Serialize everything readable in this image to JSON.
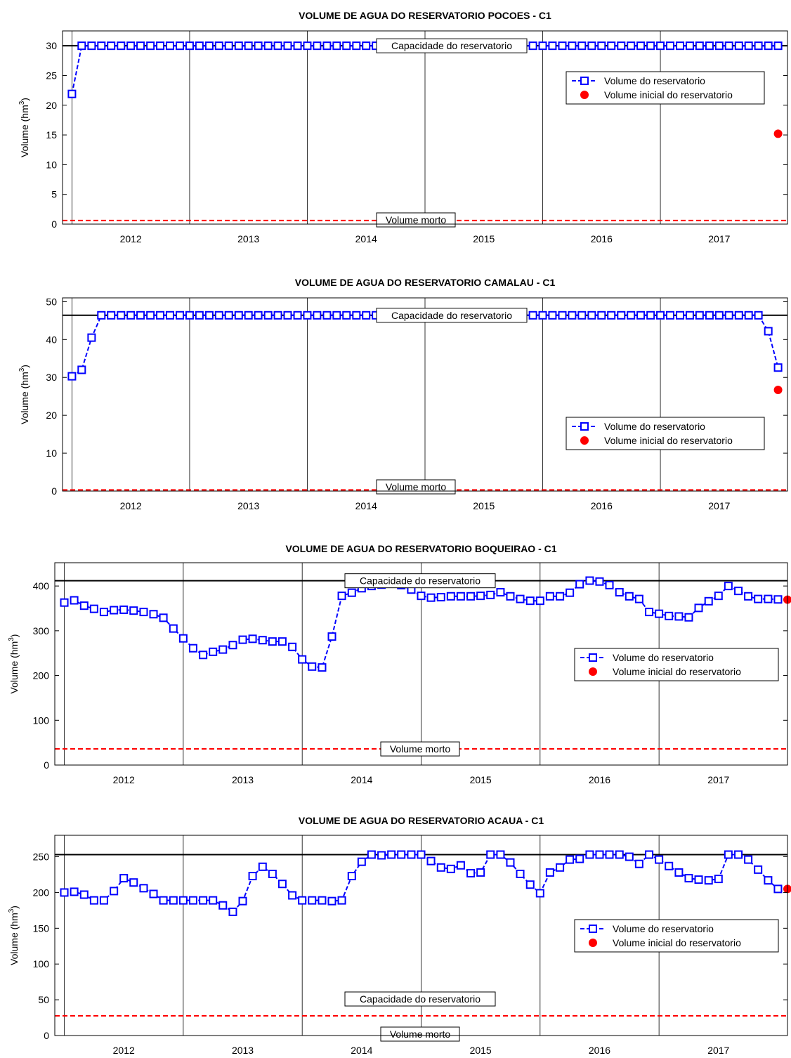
{
  "page": {
    "series_name": "Volume do reservatorio",
    "initial_name": "Volume inicial do reservatorio",
    "capacity_label": "Capacidade do reservatorio",
    "dead_label": "Volume morto",
    "ylabel_main": "Volume (hm",
    "ylabel_sup": "3",
    "ylabel_end": ")",
    "colors": {
      "series": "#0000ff",
      "capacity": "#000000",
      "dead": "#ff0000",
      "initial": "#ff0000",
      "grid": "#000000"
    }
  },
  "chart_data": [
    {
      "type": "line",
      "title": "VOLUME DE AGUA DO RESERVATORIO POCOES - C1",
      "xlim": [
        2011.42,
        2017.58
      ],
      "year_ticks": [
        "2012",
        "2013",
        "2014",
        "2015",
        "2016",
        "2017"
      ],
      "ylim": [
        0,
        32.5
      ],
      "yticks": [
        0,
        5,
        10,
        15,
        20,
        25,
        30
      ],
      "capacity": 30,
      "dead_volume": 0.6,
      "initial_volume": {
        "x": 2017.5,
        "y": 15.2
      },
      "legend": "upper-right",
      "x": [
        2011.5,
        2011.583,
        2011.667,
        2011.75,
        2011.833,
        2011.917,
        2012,
        2012.083,
        2012.167,
        2012.25,
        2012.333,
        2012.417,
        2012.5,
        2012.583,
        2012.667,
        2012.75,
        2012.833,
        2012.917,
        2013,
        2013.083,
        2013.167,
        2013.25,
        2013.333,
        2013.417,
        2013.5,
        2013.583,
        2013.667,
        2013.75,
        2013.833,
        2013.917,
        2014,
        2014.083,
        2014.167,
        2014.25,
        2014.333,
        2014.417,
        2014.5,
        2014.583,
        2014.667,
        2014.75,
        2014.833,
        2014.917,
        2015,
        2015.083,
        2015.167,
        2015.25,
        2015.333,
        2015.417,
        2015.5,
        2015.583,
        2015.667,
        2015.75,
        2015.833,
        2015.917,
        2016,
        2016.083,
        2016.167,
        2016.25,
        2016.333,
        2016.417,
        2016.5,
        2016.583,
        2016.667,
        2016.75,
        2016.833,
        2016.917,
        2017,
        2017.083,
        2017.167,
        2017.25,
        2017.333,
        2017.417,
        2017.5
      ],
      "y": [
        21.9,
        30,
        30,
        30,
        30,
        30,
        30,
        30,
        30,
        30,
        30,
        30,
        30,
        30,
        30,
        30,
        30,
        30,
        30,
        30,
        30,
        30,
        30,
        30,
        30,
        30,
        30,
        30,
        30,
        30,
        30,
        30,
        30,
        30,
        30,
        30,
        30,
        30,
        30,
        30,
        30,
        30,
        30,
        30,
        30,
        30,
        30,
        30,
        30,
        30,
        30,
        30,
        30,
        30,
        30,
        30,
        30,
        30,
        30,
        30,
        30,
        30,
        30,
        30,
        30,
        30,
        30,
        30,
        30,
        30,
        30,
        30,
        30
      ]
    },
    {
      "type": "line",
      "title": "VOLUME DE AGUA DO RESERVATORIO CAMALAU - C1",
      "xlim": [
        2011.42,
        2017.58
      ],
      "year_ticks": [
        "2012",
        "2013",
        "2014",
        "2015",
        "2016",
        "2017"
      ],
      "ylim": [
        0,
        51
      ],
      "yticks": [
        0,
        10,
        20,
        30,
        40,
        50
      ],
      "capacity": 46.4,
      "dead_volume": 0.3,
      "initial_volume": {
        "x": 2017.5,
        "y": 26.7
      },
      "legend": "lower-right",
      "x": [
        2011.5,
        2011.583,
        2011.667,
        2011.75,
        2011.833,
        2011.917,
        2012,
        2012.083,
        2012.167,
        2012.25,
        2012.333,
        2012.417,
        2012.5,
        2012.583,
        2012.667,
        2012.75,
        2012.833,
        2012.917,
        2013,
        2013.083,
        2013.167,
        2013.25,
        2013.333,
        2013.417,
        2013.5,
        2013.583,
        2013.667,
        2013.75,
        2013.833,
        2013.917,
        2014,
        2014.083,
        2014.167,
        2014.25,
        2014.333,
        2014.417,
        2014.5,
        2014.583,
        2014.667,
        2014.75,
        2014.833,
        2014.917,
        2015,
        2015.083,
        2015.167,
        2015.25,
        2015.333,
        2015.417,
        2015.5,
        2015.583,
        2015.667,
        2015.75,
        2015.833,
        2015.917,
        2016,
        2016.083,
        2016.167,
        2016.25,
        2016.333,
        2016.417,
        2016.5,
        2016.583,
        2016.667,
        2016.75,
        2016.833,
        2016.917,
        2017,
        2017.083,
        2017.167,
        2017.25,
        2017.333,
        2017.417,
        2017.5
      ],
      "y": [
        30.3,
        32,
        40.5,
        46.4,
        46.4,
        46.4,
        46.4,
        46.4,
        46.4,
        46.4,
        46.4,
        46.4,
        46.4,
        46.4,
        46.4,
        46.4,
        46.4,
        46.4,
        46.4,
        46.4,
        46.4,
        46.4,
        46.4,
        46.4,
        46.4,
        46.4,
        46.4,
        46.4,
        46.4,
        46.4,
        46.4,
        46.4,
        46.4,
        46.4,
        46.4,
        46.4,
        46.4,
        46.4,
        46.4,
        46.4,
        46.4,
        46.4,
        46.4,
        46.4,
        46.4,
        46.4,
        46.4,
        46.4,
        46.4,
        46.4,
        46.4,
        46.4,
        46.4,
        46.4,
        46.4,
        46.4,
        46.4,
        46.4,
        46.4,
        46.4,
        46.4,
        46.4,
        46.4,
        46.4,
        46.4,
        46.4,
        46.4,
        46.4,
        46.4,
        46.4,
        46.4,
        42.2,
        32.6
      ]
    },
    {
      "type": "line",
      "title": "VOLUME DE AGUA DO RESERVATORIO BOQUEIRAO - C1",
      "xlim": [
        2011.42,
        2017.58
      ],
      "year_ticks": [
        "2012",
        "2013",
        "2014",
        "2015",
        "2016",
        "2017"
      ],
      "ylim": [
        0,
        452
      ],
      "yticks": [
        0,
        100,
        200,
        300,
        400
      ],
      "capacity": 411.7,
      "dead_volume": 36,
      "initial_volume": {
        "x": 2017.58,
        "y": 369.5
      },
      "legend": "right",
      "x": [
        2011.5,
        2011.583,
        2011.667,
        2011.75,
        2011.833,
        2011.917,
        2012,
        2012.083,
        2012.167,
        2012.25,
        2012.333,
        2012.417,
        2012.5,
        2012.583,
        2012.667,
        2012.75,
        2012.833,
        2012.917,
        2013,
        2013.083,
        2013.167,
        2013.25,
        2013.333,
        2013.417,
        2013.5,
        2013.583,
        2013.667,
        2013.75,
        2013.833,
        2013.917,
        2014,
        2014.083,
        2014.167,
        2014.25,
        2014.333,
        2014.417,
        2014.5,
        2014.583,
        2014.667,
        2014.75,
        2014.833,
        2014.917,
        2015,
        2015.083,
        2015.167,
        2015.25,
        2015.333,
        2015.417,
        2015.5,
        2015.583,
        2015.667,
        2015.75,
        2015.833,
        2015.917,
        2016,
        2016.083,
        2016.167,
        2016.25,
        2016.333,
        2016.417,
        2016.5,
        2016.583,
        2016.667,
        2016.75,
        2016.833,
        2016.917,
        2017,
        2017.083,
        2017.167,
        2017.25,
        2017.333,
        2017.417,
        2017.5
      ],
      "y": [
        363,
        368,
        356,
        349,
        342,
        346,
        347,
        345,
        342,
        337,
        329,
        305,
        283,
        261,
        246,
        253,
        258,
        268,
        280,
        282,
        279,
        276,
        276,
        264,
        236,
        220,
        218,
        287,
        378,
        385,
        395,
        400,
        403,
        405,
        402,
        392,
        378,
        374,
        375,
        377,
        377,
        377,
        378,
        380,
        386,
        377,
        371,
        367,
        367,
        377,
        377,
        385,
        404,
        412,
        410,
        402,
        386,
        377,
        371,
        342,
        338,
        333,
        332,
        330,
        351,
        366,
        378,
        400,
        389,
        377,
        371,
        371,
        370
      ]
    },
    {
      "type": "line",
      "title": "VOLUME DE AGUA DO RESERVATORIO ACAUA - C1",
      "xlim": [
        2011.42,
        2017.58
      ],
      "year_ticks": [
        "2012",
        "2013",
        "2014",
        "2015",
        "2016",
        "2017"
      ],
      "ylim": [
        0,
        280
      ],
      "yticks": [
        0,
        50,
        100,
        150,
        200,
        250
      ],
      "capacity": 253,
      "dead_volume": 27.5,
      "initial_volume": {
        "x": 2017.58,
        "y": 205
      },
      "legend": "right",
      "x": [
        2011.5,
        2011.583,
        2011.667,
        2011.75,
        2011.833,
        2011.917,
        2012,
        2012.083,
        2012.167,
        2012.25,
        2012.333,
        2012.417,
        2012.5,
        2012.583,
        2012.667,
        2012.75,
        2012.833,
        2012.917,
        2013,
        2013.083,
        2013.167,
        2013.25,
        2013.333,
        2013.417,
        2013.5,
        2013.583,
        2013.667,
        2013.75,
        2013.833,
        2013.917,
        2014,
        2014.083,
        2014.167,
        2014.25,
        2014.333,
        2014.417,
        2014.5,
        2014.583,
        2014.667,
        2014.75,
        2014.833,
        2014.917,
        2015,
        2015.083,
        2015.167,
        2015.25,
        2015.333,
        2015.417,
        2015.5,
        2015.583,
        2015.667,
        2015.75,
        2015.833,
        2015.917,
        2016,
        2016.083,
        2016.167,
        2016.25,
        2016.333,
        2016.417,
        2016.5,
        2016.583,
        2016.667,
        2016.75,
        2016.833,
        2016.917,
        2017,
        2017.083,
        2017.167,
        2017.25,
        2017.333,
        2017.417,
        2017.5
      ],
      "y": [
        200,
        201,
        197,
        189,
        189,
        202,
        220,
        214,
        206,
        198,
        189,
        189,
        189,
        189,
        189,
        189,
        182,
        173,
        188,
        223,
        236,
        226,
        212,
        196,
        189,
        189,
        189,
        188,
        189,
        223,
        243,
        253,
        252,
        253,
        253,
        253,
        253,
        244,
        235,
        233,
        238,
        227,
        228,
        253,
        253,
        242,
        226,
        211,
        199,
        228,
        235,
        246,
        247,
        253,
        253,
        253,
        253,
        250,
        240,
        253,
        246,
        237,
        228,
        220,
        218,
        217,
        219,
        253,
        253,
        246,
        232,
        217,
        205
      ]
    }
  ]
}
